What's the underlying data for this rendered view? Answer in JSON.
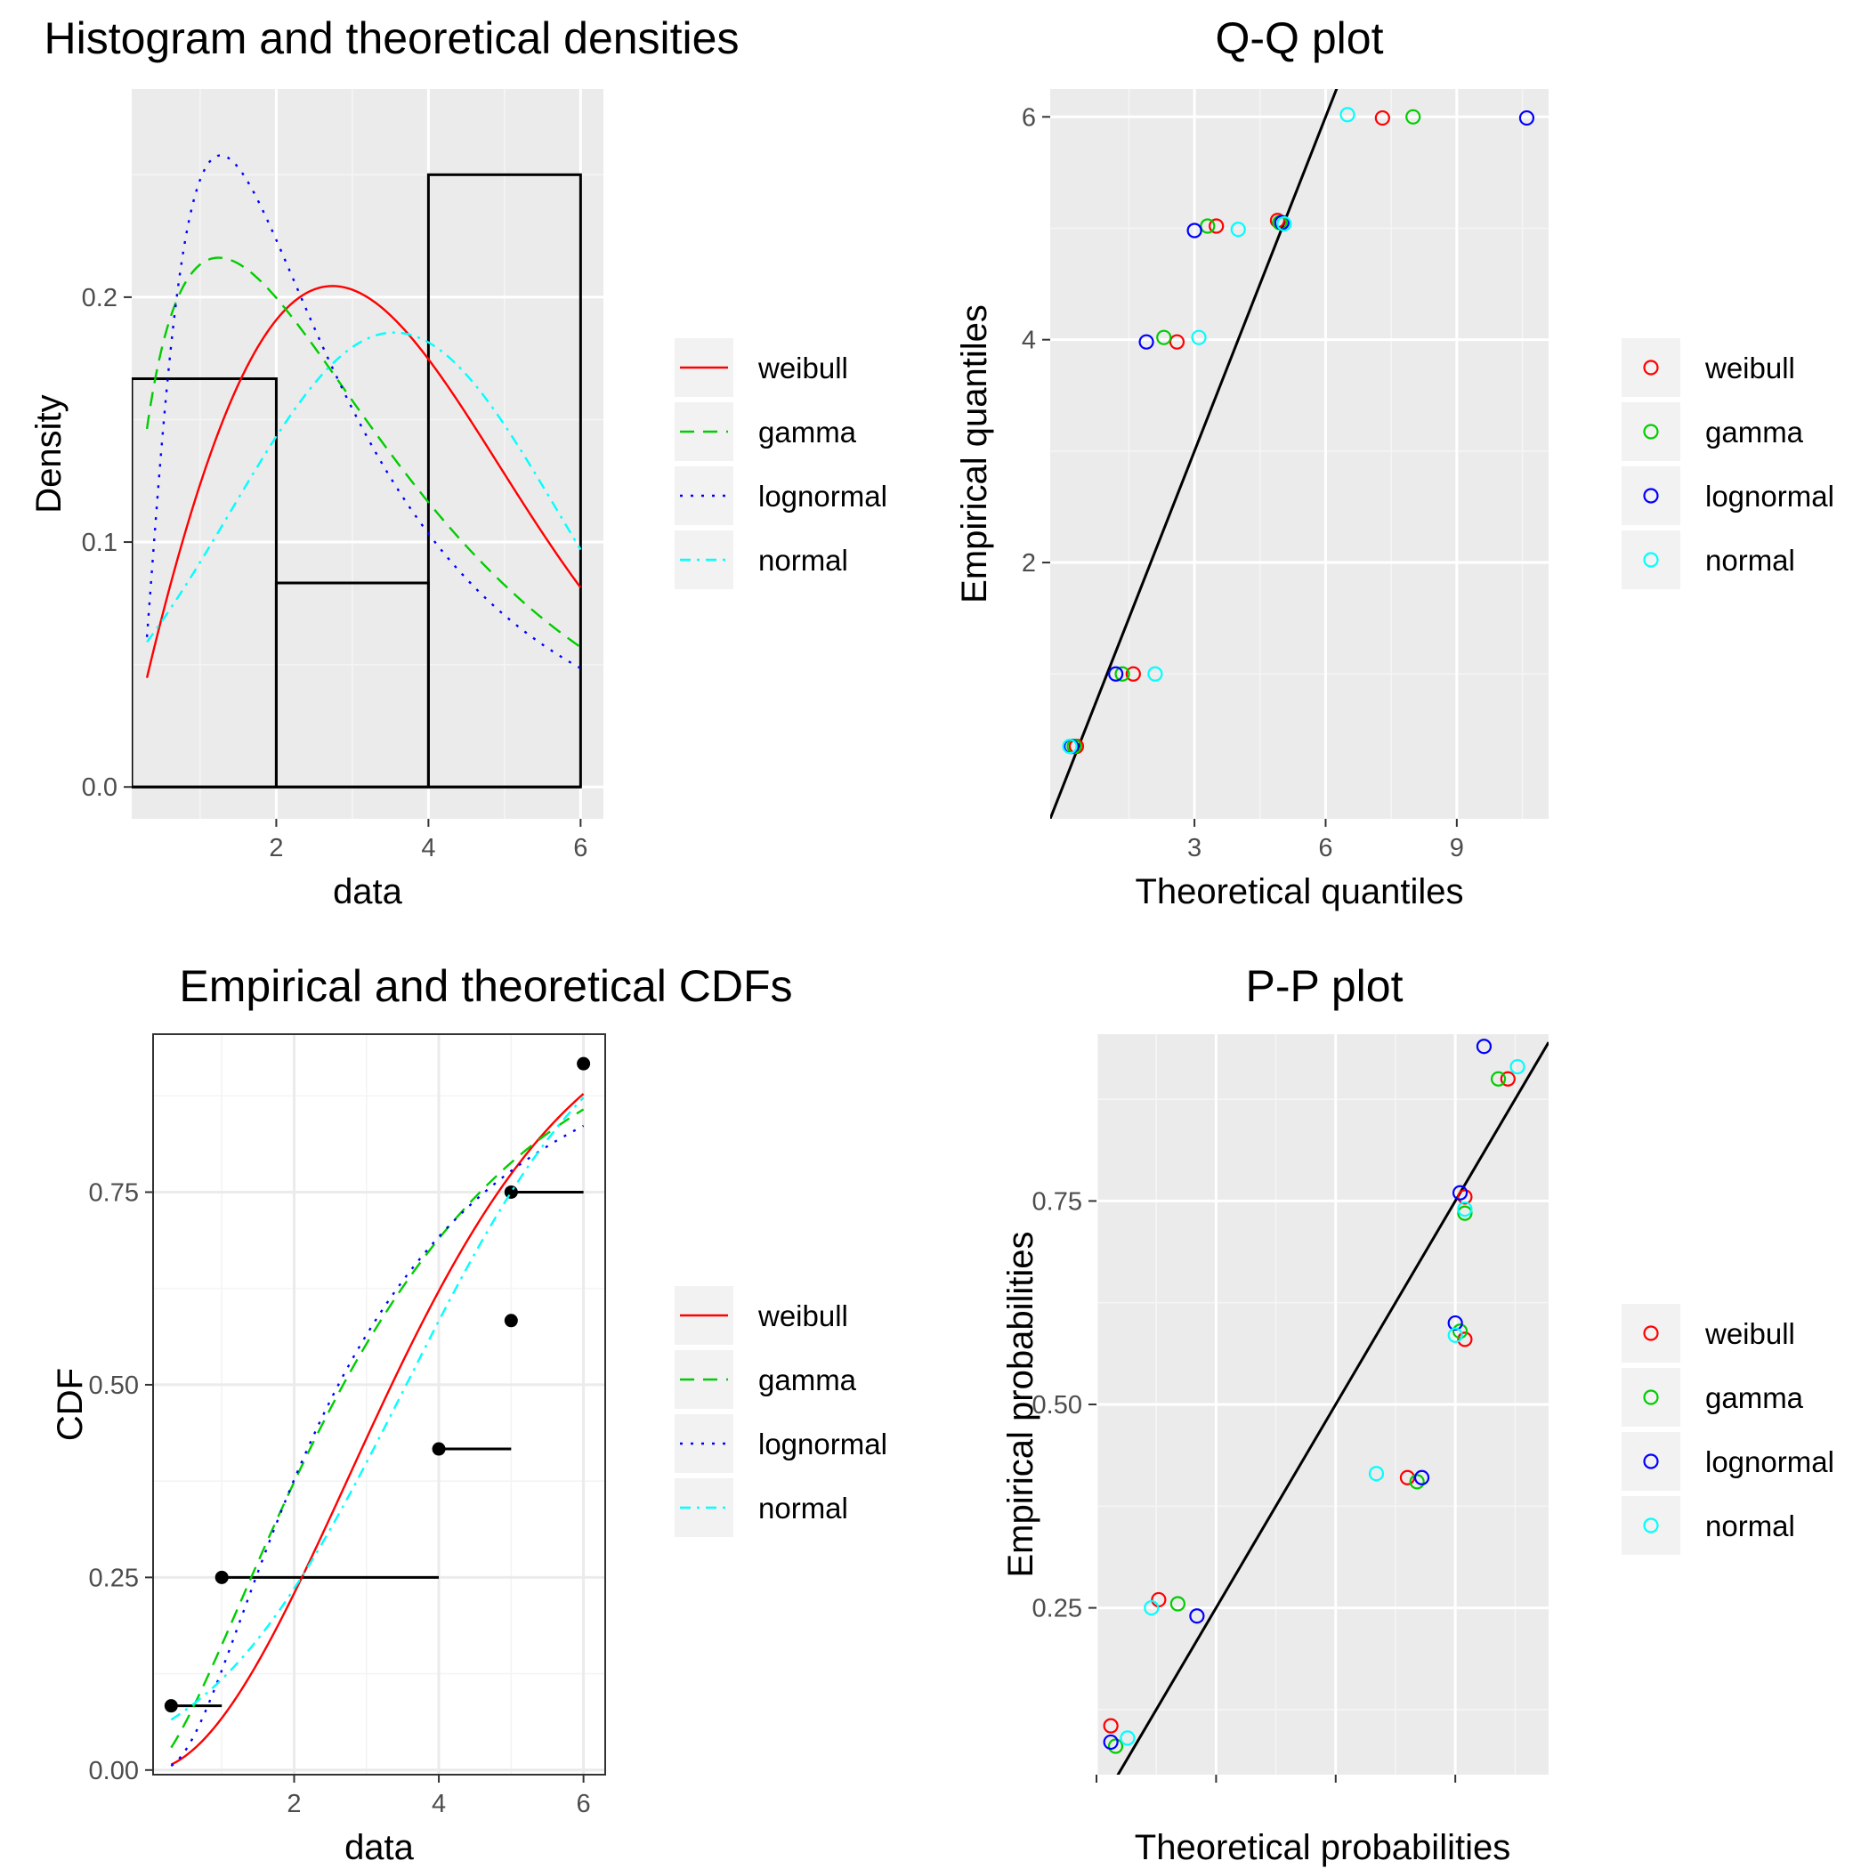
{
  "colors": {
    "weibull": "#ff0000",
    "gamma": "#00cd00",
    "lognormal": "#0000ff",
    "normal": "#00ffff",
    "panel_bg": "#ebebeb",
    "grid": "#ffffff"
  },
  "chart_data": [
    {
      "id": "hist",
      "type": "histogram",
      "title": "Histogram and theoretical densities",
      "xlabel": "data",
      "ylabel": "Density",
      "xlim": [
        0.1,
        6.3
      ],
      "ylim": [
        -0.013,
        0.285
      ],
      "xticks": [
        2,
        4,
        6
      ],
      "xtick_labels": [
        "2",
        "4",
        "6"
      ],
      "yticks": [
        0.0,
        0.1,
        0.2
      ],
      "ytick_labels": [
        "0.0",
        "0.1",
        "0.2"
      ],
      "xminor": [
        1,
        3,
        5
      ],
      "yminor": [
        0.05,
        0.15,
        0.25
      ],
      "panel_style": "grey",
      "bars": [
        {
          "x0": 0.1,
          "x1": 2,
          "density": 0.1667
        },
        {
          "x0": 2,
          "x1": 4,
          "density": 0.0833
        },
        {
          "x0": 4,
          "x1": 6,
          "density": 0.25
        }
      ],
      "legend": {
        "position": "right",
        "kind": "line",
        "entries": [
          "weibull",
          "gamma",
          "lognormal",
          "normal"
        ]
      },
      "series": [
        {
          "name": "weibull",
          "dist": "weibull",
          "shape": 1.9,
          "scale": 4.06
        },
        {
          "name": "gamma",
          "dist": "gamma",
          "shape": 1.59,
          "rate": 0.475
        },
        {
          "name": "lognormal",
          "dist": "lognormal",
          "meanlog": 0.96,
          "sdlog": 0.85
        },
        {
          "name": "normal",
          "dist": "normal",
          "mean": 3.55,
          "sd": 2.15
        }
      ],
      "x_range": [
        0.3,
        6
      ]
    },
    {
      "id": "qq",
      "type": "scatter",
      "title": "Q-Q plot",
      "xlabel": "Theoretical quantiles",
      "ylabel": "Empirical quantiles",
      "xlim": [
        -0.3,
        11.1
      ],
      "ylim": [
        -0.3,
        6.25
      ],
      "xticks": [
        3,
        6,
        9
      ],
      "xtick_labels": [
        "3",
        "6",
        "9"
      ],
      "yticks": [
        2,
        4,
        6
      ],
      "ytick_labels": [
        "2",
        "4",
        "6"
      ],
      "xminor": [
        1.5,
        4.5,
        7.5,
        10.5
      ],
      "yminor": [
        1,
        3,
        5
      ],
      "panel_style": "grey",
      "reference_line": {
        "x1": -0.3,
        "y1": -0.3,
        "x2": 11.1,
        "y2": 11.1
      },
      "legend": {
        "position": "right",
        "kind": "point",
        "entries": [
          "weibull",
          "gamma",
          "lognormal",
          "normal"
        ]
      },
      "series": [
        {
          "name": "weibull",
          "points": [
            [
              0.3,
              0.35
            ],
            [
              1.6,
              1.0
            ],
            [
              2.6,
              3.98
            ],
            [
              3.5,
              5.02
            ],
            [
              4.9,
              5.07
            ],
            [
              7.3,
              5.99
            ]
          ]
        },
        {
          "name": "gamma",
          "points": [
            [
              0.25,
              0.35
            ],
            [
              1.35,
              1.0
            ],
            [
              2.3,
              4.02
            ],
            [
              3.3,
              5.02
            ],
            [
              4.95,
              5.05
            ],
            [
              8.0,
              6.0
            ]
          ]
        },
        {
          "name": "lognormal",
          "points": [
            [
              0.18,
              0.35
            ],
            [
              1.2,
              1.0
            ],
            [
              1.9,
              3.98
            ],
            [
              3.0,
              4.98
            ],
            [
              5.0,
              5.05
            ],
            [
              10.6,
              5.99
            ]
          ]
        },
        {
          "name": "normal",
          "points": [
            [
              0.15,
              0.35
            ],
            [
              2.1,
              1.0
            ],
            [
              3.1,
              4.02
            ],
            [
              4.0,
              4.99
            ],
            [
              5.05,
              5.04
            ],
            [
              6.5,
              6.02
            ]
          ]
        }
      ]
    },
    {
      "id": "cdf",
      "type": "step",
      "title": "Empirical and theoretical CDFs",
      "xlabel": "data",
      "ylabel": "CDF",
      "xlim": [
        0.05,
        6.3
      ],
      "ylim": [
        -0.006,
        0.955
      ],
      "xticks": [
        2,
        4,
        6
      ],
      "xtick_labels": [
        "2",
        "4",
        "6"
      ],
      "yticks": [
        0.0,
        0.25,
        0.5,
        0.75
      ],
      "ytick_labels": [
        "0.00",
        "0.25",
        "0.50",
        "0.75"
      ],
      "xminor": [
        1,
        3,
        5
      ],
      "yminor": [
        0.125,
        0.375,
        0.625,
        0.875
      ],
      "panel_style": "bw",
      "steps": [
        {
          "x0": 0.3,
          "x1": 1.0,
          "y": 0.0833
        },
        {
          "x0": 1.0,
          "x1": 4.0,
          "y": 0.25
        },
        {
          "x0": 4.0,
          "x1": 5.0,
          "y": 0.4167
        },
        {
          "x0": 5.0,
          "x1": 5.0,
          "y": 0.5833
        },
        {
          "x0": 5.0,
          "x1": 6.0,
          "y": 0.75
        },
        {
          "x0": 6.0,
          "x1": 6.0,
          "y": 0.9167
        }
      ],
      "legend": {
        "position": "right",
        "kind": "line",
        "entries": [
          "weibull",
          "gamma",
          "lognormal",
          "normal"
        ]
      },
      "series": [
        {
          "name": "weibull",
          "dist": "weibull",
          "shape": 1.9,
          "scale": 4.06
        },
        {
          "name": "gamma",
          "dist": "gamma",
          "shape": 1.59,
          "rate": 0.475
        },
        {
          "name": "lognormal",
          "dist": "lognormal",
          "meanlog": 0.96,
          "sdlog": 0.85
        },
        {
          "name": "normal",
          "dist": "normal",
          "mean": 3.55,
          "sd": 2.15
        }
      ],
      "x_range": [
        0.3,
        6
      ]
    },
    {
      "id": "pp",
      "type": "scatter",
      "title": "P-P plot",
      "xlabel": "Theoretical probabilities",
      "ylabel": "Empirical probabilities",
      "xlim": [
        0.0,
        0.945
      ],
      "ylim": [
        0.045,
        0.955
      ],
      "xticks": [
        0.0,
        0.25,
        0.5,
        0.75
      ],
      "xtick_labels": [
        "",
        "",
        "",
        ""
      ],
      "yticks": [
        0.25,
        0.5,
        0.75
      ],
      "ytick_labels": [
        "0.25",
        "0.50",
        "0.75"
      ],
      "xminor": [
        0.125,
        0.375,
        0.625,
        0.875
      ],
      "yminor": [
        0.125,
        0.375,
        0.625,
        0.875
      ],
      "panel_style": "grey",
      "reference_line": {
        "x1": 0.0,
        "y1": 0.0,
        "x2": 0.945,
        "y2": 0.945
      },
      "legend": {
        "position": "right",
        "kind": "point",
        "entries": [
          "weibull",
          "gamma",
          "lognormal",
          "normal"
        ]
      },
      "series": [
        {
          "name": "weibull",
          "points": [
            [
              0.03,
              0.105
            ],
            [
              0.13,
              0.26
            ],
            [
              0.65,
              0.41
            ],
            [
              0.77,
              0.58
            ],
            [
              0.77,
              0.755
            ],
            [
              0.86,
              0.9
            ]
          ]
        },
        {
          "name": "gamma",
          "points": [
            [
              0.04,
              0.08
            ],
            [
              0.17,
              0.255
            ],
            [
              0.67,
              0.405
            ],
            [
              0.76,
              0.59
            ],
            [
              0.77,
              0.735
            ],
            [
              0.84,
              0.9
            ]
          ]
        },
        {
          "name": "lognormal",
          "points": [
            [
              0.03,
              0.085
            ],
            [
              0.21,
              0.24
            ],
            [
              0.68,
              0.41
            ],
            [
              0.75,
              0.6
            ],
            [
              0.76,
              0.76
            ],
            [
              0.81,
              0.94
            ]
          ]
        },
        {
          "name": "normal",
          "points": [
            [
              0.065,
              0.09
            ],
            [
              0.115,
              0.25
            ],
            [
              0.585,
              0.415
            ],
            [
              0.75,
              0.585
            ],
            [
              0.77,
              0.74
            ],
            [
              0.88,
              0.915
            ]
          ]
        }
      ]
    }
  ]
}
